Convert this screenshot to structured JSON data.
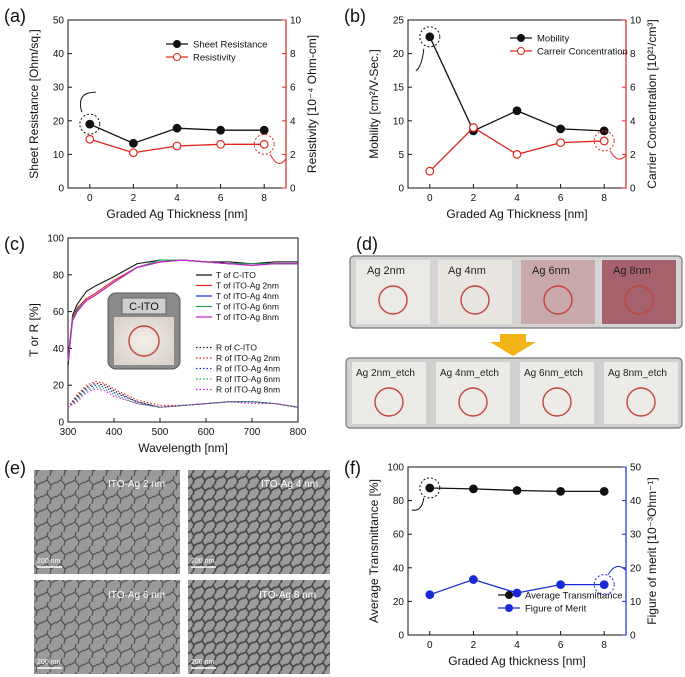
{
  "panels": {
    "a": "(a)",
    "b": "(b)",
    "c": "(c)",
    "d": "(d)",
    "e": "(e)",
    "f": "(f)"
  },
  "colors": {
    "black": "#111111",
    "red": "#e0261c",
    "blue": "#1a2bd6"
  },
  "chart_data": [
    {
      "id": "a",
      "type": "line",
      "x": [
        0,
        2,
        4,
        6,
        8
      ],
      "xlabel": "Graded Ag Thickness [nm]",
      "xlim": [
        -1,
        9
      ],
      "xticks": [
        0,
        2,
        4,
        6,
        8
      ],
      "ylabel": "Sheet Resistance [Ohm/sq.]",
      "ylim": [
        0,
        50
      ],
      "yticks": [
        0,
        10,
        20,
        30,
        40,
        50
      ],
      "y2label": "Resistivity [10⁻⁴ Ohm-cm]",
      "y2lim": [
        0,
        10
      ],
      "y2ticks": [
        0,
        2,
        4,
        6,
        8,
        10
      ],
      "series": [
        {
          "name": "Sheet Resistance",
          "axis": "left",
          "color": "#111111",
          "marker": "filled",
          "values": [
            19.0,
            13.3,
            17.8,
            17.2,
            17.2
          ]
        },
        {
          "name": "Resistivity",
          "axis": "right",
          "color": "#e0261c",
          "marker": "open",
          "values": [
            2.9,
            2.1,
            2.5,
            2.6,
            2.6
          ]
        }
      ]
    },
    {
      "id": "b",
      "type": "line",
      "x": [
        0,
        2,
        4,
        6,
        8
      ],
      "xlabel": "Graded Ag Thickness [nm]",
      "xlim": [
        -1,
        9
      ],
      "xticks": [
        0,
        2,
        4,
        6,
        8
      ],
      "ylabel": "Mobility [cm²/V-Sec.]",
      "ylim": [
        0,
        25
      ],
      "yticks": [
        0,
        5,
        10,
        15,
        20,
        25
      ],
      "y2label": "Carrier Concentration [10²¹/cm³]",
      "y2lim": [
        0,
        10
      ],
      "y2ticks": [
        0,
        2,
        4,
        6,
        8,
        10
      ],
      "series": [
        {
          "name": "Mobility",
          "axis": "left",
          "color": "#111111",
          "marker": "filled",
          "values": [
            22.5,
            8.5,
            11.5,
            8.8,
            8.5
          ]
        },
        {
          "name": "Carreir Concentration",
          "axis": "right",
          "color": "#e0261c",
          "marker": "open",
          "values": [
            1.0,
            3.6,
            2.0,
            2.7,
            2.8
          ]
        }
      ]
    },
    {
      "id": "c",
      "type": "line",
      "xlabel": "Wavelength [nm]",
      "xlim": [
        300,
        800
      ],
      "xticks": [
        300,
        400,
        500,
        600,
        700,
        800
      ],
      "ylabel": "T or R [%]",
      "ylim": [
        0,
        100
      ],
      "yticks": [
        0,
        20,
        40,
        60,
        80,
        100
      ],
      "inset_label": "C-ITO",
      "series": [
        {
          "name": "T of C-ITO",
          "color": "#111111",
          "dash": false,
          "x": [
            300,
            310,
            320,
            340,
            360,
            400,
            450,
            500,
            550,
            600,
            650,
            700,
            750,
            800
          ],
          "values": [
            30,
            58,
            64,
            71,
            74,
            79,
            86,
            88,
            88,
            87,
            87,
            86,
            87,
            87
          ]
        },
        {
          "name": "T of ITO-Ag 2nm",
          "color": "#e0261c",
          "dash": false,
          "x": [
            300,
            310,
            320,
            340,
            360,
            400,
            450,
            500,
            550,
            600,
            650,
            700,
            750,
            800
          ],
          "values": [
            35,
            57,
            62,
            67,
            70,
            77,
            84,
            87,
            88,
            87,
            86,
            86,
            86,
            86
          ]
        },
        {
          "name": "T of ITO-Ag 4nm",
          "color": "#1a2bd6",
          "dash": false,
          "x": [
            300,
            310,
            320,
            340,
            360,
            400,
            450,
            500,
            550,
            600,
            650,
            700,
            750,
            800
          ],
          "values": [
            34,
            56,
            61,
            66,
            69,
            76,
            84,
            87,
            88,
            87,
            86,
            86,
            86,
            86
          ]
        },
        {
          "name": "T of ITO-Ag 6nm",
          "color": "#1aa84a",
          "dash": false,
          "x": [
            300,
            310,
            320,
            340,
            360,
            400,
            450,
            500,
            550,
            600,
            650,
            700,
            750,
            800
          ],
          "values": [
            33,
            56,
            61,
            66,
            69,
            76,
            84,
            88,
            88,
            87,
            86,
            86,
            86,
            86
          ]
        },
        {
          "name": "T of ITO-Ag 8nm",
          "color": "#d020d0",
          "dash": false,
          "x": [
            300,
            310,
            320,
            340,
            360,
            400,
            450,
            500,
            550,
            600,
            650,
            700,
            750,
            800
          ],
          "values": [
            33,
            55,
            60,
            66,
            69,
            76,
            84,
            87,
            88,
            87,
            86,
            85,
            86,
            86
          ]
        },
        {
          "name": "R of C-ITO",
          "color": "#111111",
          "dash": true,
          "x": [
            300,
            320,
            340,
            360,
            380,
            400,
            450,
            500,
            550,
            600,
            650,
            700,
            750,
            800
          ],
          "values": [
            8,
            14,
            19,
            21,
            20,
            17,
            11,
            8,
            9,
            10,
            11,
            11,
            10,
            8
          ]
        },
        {
          "name": "R of ITO-Ag 2nm",
          "color": "#e0261c",
          "dash": true,
          "x": [
            300,
            320,
            340,
            360,
            380,
            400,
            450,
            500,
            550,
            600,
            650,
            700,
            750,
            800
          ],
          "values": [
            8,
            15,
            20,
            22,
            21,
            18,
            12,
            9,
            9,
            10,
            11,
            11,
            10,
            8
          ]
        },
        {
          "name": "R of ITO-Ag 4nm",
          "color": "#1a2bd6",
          "dash": true,
          "x": [
            300,
            320,
            340,
            360,
            380,
            400,
            450,
            500,
            550,
            600,
            650,
            700,
            750,
            800
          ],
          "values": [
            8,
            13,
            18,
            20,
            19,
            16,
            11,
            8,
            9,
            10,
            11,
            11,
            10,
            8
          ]
        },
        {
          "name": "R of ITO-Ag 6nm",
          "color": "#1aa84a",
          "dash": true,
          "x": [
            300,
            320,
            340,
            360,
            380,
            400,
            450,
            500,
            550,
            600,
            650,
            700,
            750,
            800
          ],
          "values": [
            8,
            12,
            17,
            19,
            18,
            15,
            10,
            8,
            9,
            10,
            11,
            11,
            10,
            8
          ]
        },
        {
          "name": "R of ITO-Ag 8nm",
          "color": "#d020d0",
          "dash": true,
          "x": [
            300,
            320,
            340,
            360,
            380,
            400,
            450,
            500,
            550,
            600,
            650,
            700,
            750,
            800
          ],
          "values": [
            8,
            11,
            16,
            18,
            17,
            14,
            10,
            8,
            9,
            10,
            11,
            10,
            10,
            8
          ]
        }
      ]
    },
    {
      "id": "f",
      "type": "line",
      "x": [
        0,
        2,
        4,
        6,
        8
      ],
      "xlabel": "Graded Ag thickness [nm]",
      "xlim": [
        -1,
        9
      ],
      "xticks": [
        0,
        2,
        4,
        6,
        8
      ],
      "ylabel": "Average Transmittance [%]",
      "ylim": [
        0,
        100
      ],
      "yticks": [
        0,
        20,
        40,
        60,
        80,
        100
      ],
      "y2label": "Figure of merit [10⁻³Ohm⁻¹]",
      "y2lim": [
        0,
        50
      ],
      "y2ticks": [
        0,
        10,
        20,
        30,
        40,
        50
      ],
      "series": [
        {
          "name": "Average Transmittance",
          "axis": "left",
          "color": "#111111",
          "marker": "filled",
          "values": [
            87.5,
            87.0,
            86.0,
            85.5,
            85.5
          ]
        },
        {
          "name": "Figure of Merit",
          "axis": "right",
          "color": "#1a2bd6",
          "marker": "filled",
          "values": [
            12.0,
            16.5,
            12.5,
            15.0,
            15.0
          ]
        }
      ]
    }
  ],
  "photos": {
    "top_row": [
      "Ag 2nm",
      "Ag 4nm",
      "Ag 6nm",
      "Ag 8nm"
    ],
    "bottom_row": [
      "Ag 2nm_etch",
      "Ag 4nm_etch",
      "Ag 6nm_etch",
      "Ag 8nm_etch"
    ]
  },
  "sem": {
    "labels": [
      "ITO-Ag 2 nm",
      "ITO-Ag 4 nm",
      "ITO-Ag 6 nm",
      "ITO-Ag 8 nm"
    ],
    "scale_bar": "200 nm"
  }
}
